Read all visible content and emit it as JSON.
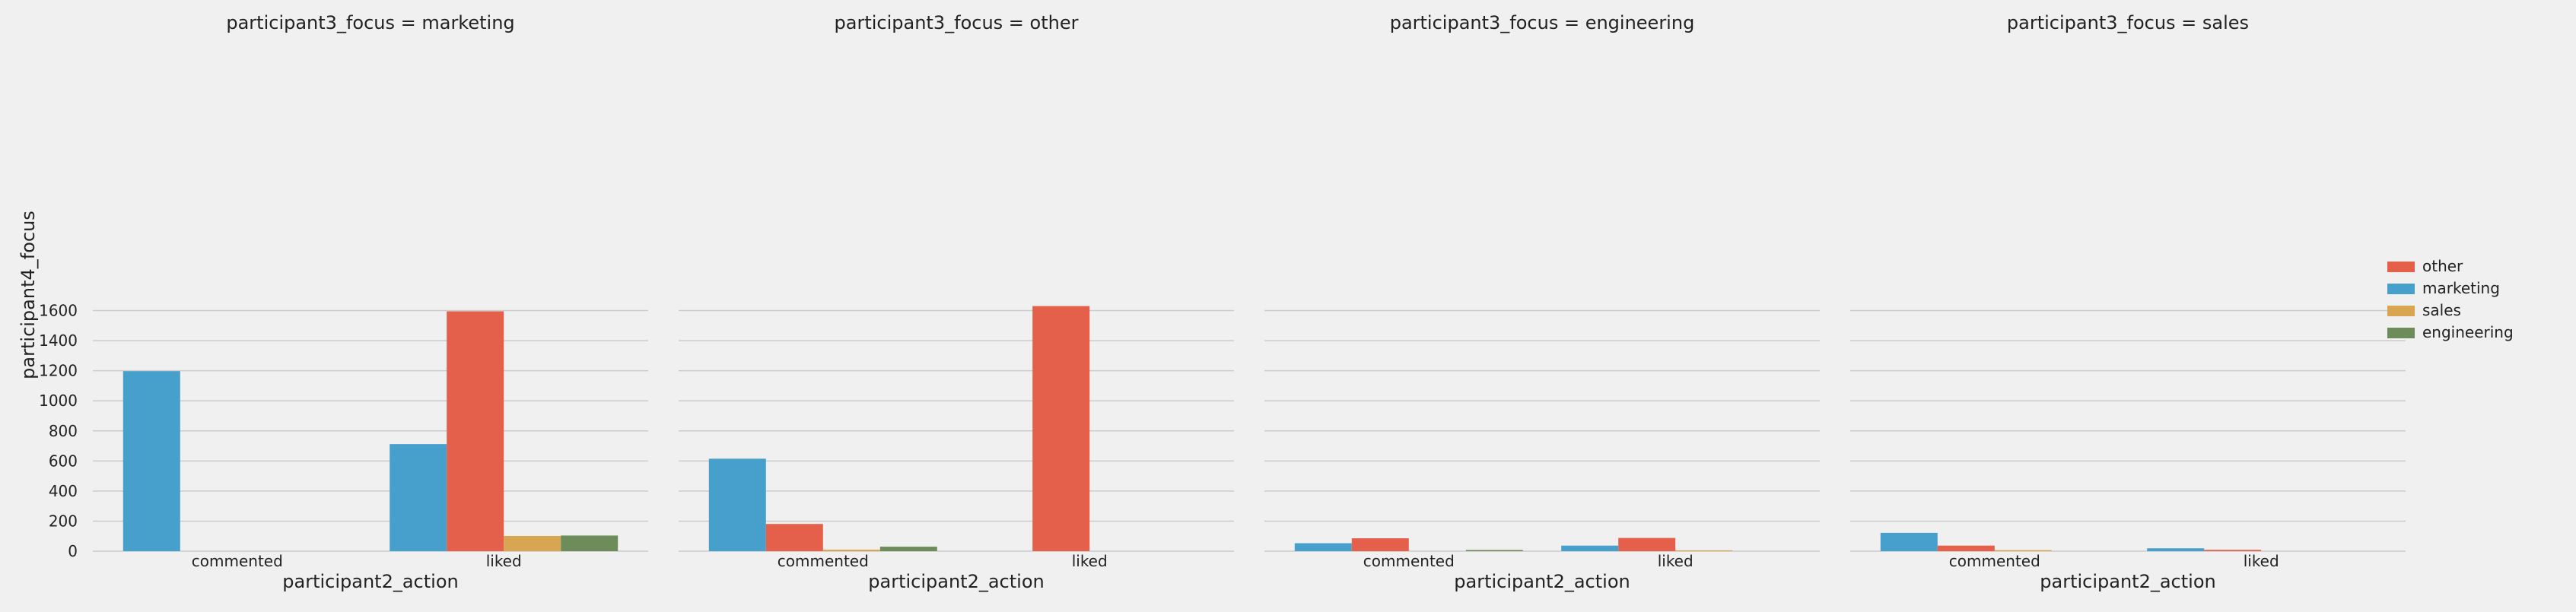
{
  "chart_data": {
    "type": "bar",
    "x_label": "participant2_action",
    "y_label": "participant4_focus",
    "y_ticks": [
      0,
      200,
      400,
      600,
      800,
      1000,
      1200,
      1400,
      1600
    ],
    "ylim": [
      0,
      1700
    ],
    "grid": true,
    "legend_position": "right",
    "categories": [
      "commented",
      "liked"
    ],
    "hue_order": [
      "marketing",
      "other",
      "sales",
      "engineering"
    ],
    "legend": [
      {
        "name": "other",
        "color": "#e5604a"
      },
      {
        "name": "marketing",
        "color": "#479fcb"
      },
      {
        "name": "sales",
        "color": "#d8a552"
      },
      {
        "name": "engineering",
        "color": "#6c8c59"
      }
    ],
    "panels": [
      {
        "title": "participant3_focus = marketing",
        "values": {
          "commented": {
            "marketing": 1197,
            "other": 0,
            "sales": 0,
            "engineering": 0
          },
          "liked": {
            "marketing": 712,
            "other": 1595,
            "sales": 101,
            "engineering": 104
          }
        }
      },
      {
        "title": "participant3_focus = other",
        "values": {
          "commented": {
            "marketing": 615,
            "other": 181,
            "sales": 10,
            "engineering": 30
          },
          "liked": {
            "marketing": 0,
            "other": 1630,
            "sales": 0,
            "engineering": 0
          }
        }
      },
      {
        "title": "participant3_focus = engineering",
        "values": {
          "commented": {
            "marketing": 53,
            "other": 86,
            "sales": 0,
            "engineering": 8
          },
          "liked": {
            "marketing": 37,
            "other": 88,
            "sales": 6,
            "engineering": 0
          }
        }
      },
      {
        "title": "participant3_focus = sales",
        "values": {
          "commented": {
            "marketing": 122,
            "other": 37,
            "sales": 7,
            "engineering": 0
          },
          "liked": {
            "marketing": 19,
            "other": 9,
            "sales": 0,
            "engineering": 0
          }
        }
      }
    ]
  }
}
